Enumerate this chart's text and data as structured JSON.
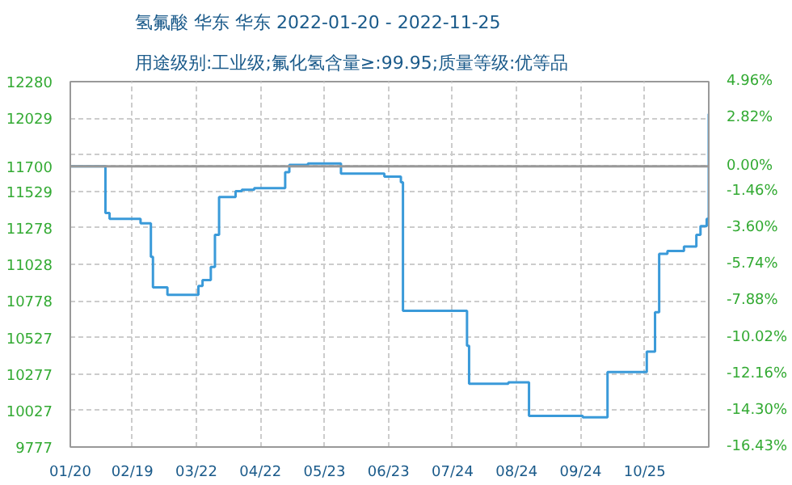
{
  "chart_data": {
    "type": "step",
    "title": "氢氟酸 华东 华东 2022-01-20 - 2022-11-25",
    "subtitle": "用途级别:工业级;氟化氢含量≥:99.95;质量等级:优等品",
    "x": [
      "2022-01-20",
      "2022-02-06",
      "2022-02-08",
      "2022-02-23",
      "2022-02-28",
      "2022-03-01",
      "2022-03-08",
      "2022-03-23",
      "2022-03-25",
      "2022-03-29",
      "2022-03-31",
      "2022-04-02",
      "2022-04-10",
      "2022-04-13",
      "2022-04-19",
      "2022-05-04",
      "2022-05-06",
      "2022-05-15",
      "2022-05-31",
      "2022-06-21",
      "2022-06-29",
      "2022-06-30",
      "2022-07-31",
      "2022-08-01",
      "2022-08-20",
      "2022-08-30",
      "2022-09-25",
      "2022-10-07",
      "2022-10-26",
      "2022-10-30",
      "2022-11-01",
      "2022-11-05",
      "2022-11-13",
      "2022-11-19",
      "2022-11-21",
      "2022-11-24",
      "2022-11-25"
    ],
    "series": [
      {
        "color": "#3a9ad9",
        "values": [
          11700,
          11380,
          11340,
          11310,
          11080,
          10870,
          10820,
          10880,
          10920,
          11010,
          11230,
          11490,
          11530,
          11540,
          11550,
          11660,
          11710,
          11720,
          11650,
          11630,
          11590,
          10710,
          10470,
          10210,
          10220,
          9990,
          9980,
          10290,
          10430,
          10700,
          11100,
          11120,
          11150,
          11230,
          11290,
          11340,
          12060
        ]
      }
    ],
    "xlim": [
      "2022-01-20",
      "2022-11-25"
    ],
    "xticks": [
      {
        "value": "2022-01-20",
        "label": "01/20"
      },
      {
        "value": "2022-02-19",
        "label": "02/19"
      },
      {
        "value": "2022-03-22",
        "label": "03/22"
      },
      {
        "value": "2022-04-22",
        "label": "04/22"
      },
      {
        "value": "2022-05-23",
        "label": "05/23"
      },
      {
        "value": "2022-06-23",
        "label": "06/23"
      },
      {
        "value": "2022-07-24",
        "label": "07/24"
      },
      {
        "value": "2022-08-24",
        "label": "08/24"
      },
      {
        "value": "2022-09-24",
        "label": "09/24"
      },
      {
        "value": "2022-10-25",
        "label": "10/25"
      }
    ],
    "ylim": [
      9777,
      12280
    ],
    "yticks": [
      9777,
      10027,
      10277,
      10527,
      10778,
      11028,
      11278,
      11529,
      11700,
      {
        "value": 11779,
        "label": null
      },
      12029,
      12280
    ],
    "y2lim": [
      -16.43,
      4.96
    ],
    "y2ticks": [
      {
        "value": -16.43,
        "label": "-16.43%"
      },
      {
        "value": -14.3,
        "label": "-14.30%"
      },
      {
        "value": -12.16,
        "label": "-12.16%"
      },
      {
        "value": -10.02,
        "label": "-10.02%"
      },
      {
        "value": -7.88,
        "label": "-7.88%"
      },
      {
        "value": -5.74,
        "label": "-5.74%"
      },
      {
        "value": -3.6,
        "label": "-3.60%"
      },
      {
        "value": -1.46,
        "label": "-1.46%"
      },
      {
        "value": 0,
        "label": "0.00%"
      },
      {
        "value": 2.82,
        "label": "2.82%"
      },
      {
        "value": 4.96,
        "label": "4.96%"
      }
    ],
    "ref_lines": [
      {
        "axis": "y",
        "value": 11700,
        "color": "#999999"
      }
    ],
    "grid": true
  }
}
